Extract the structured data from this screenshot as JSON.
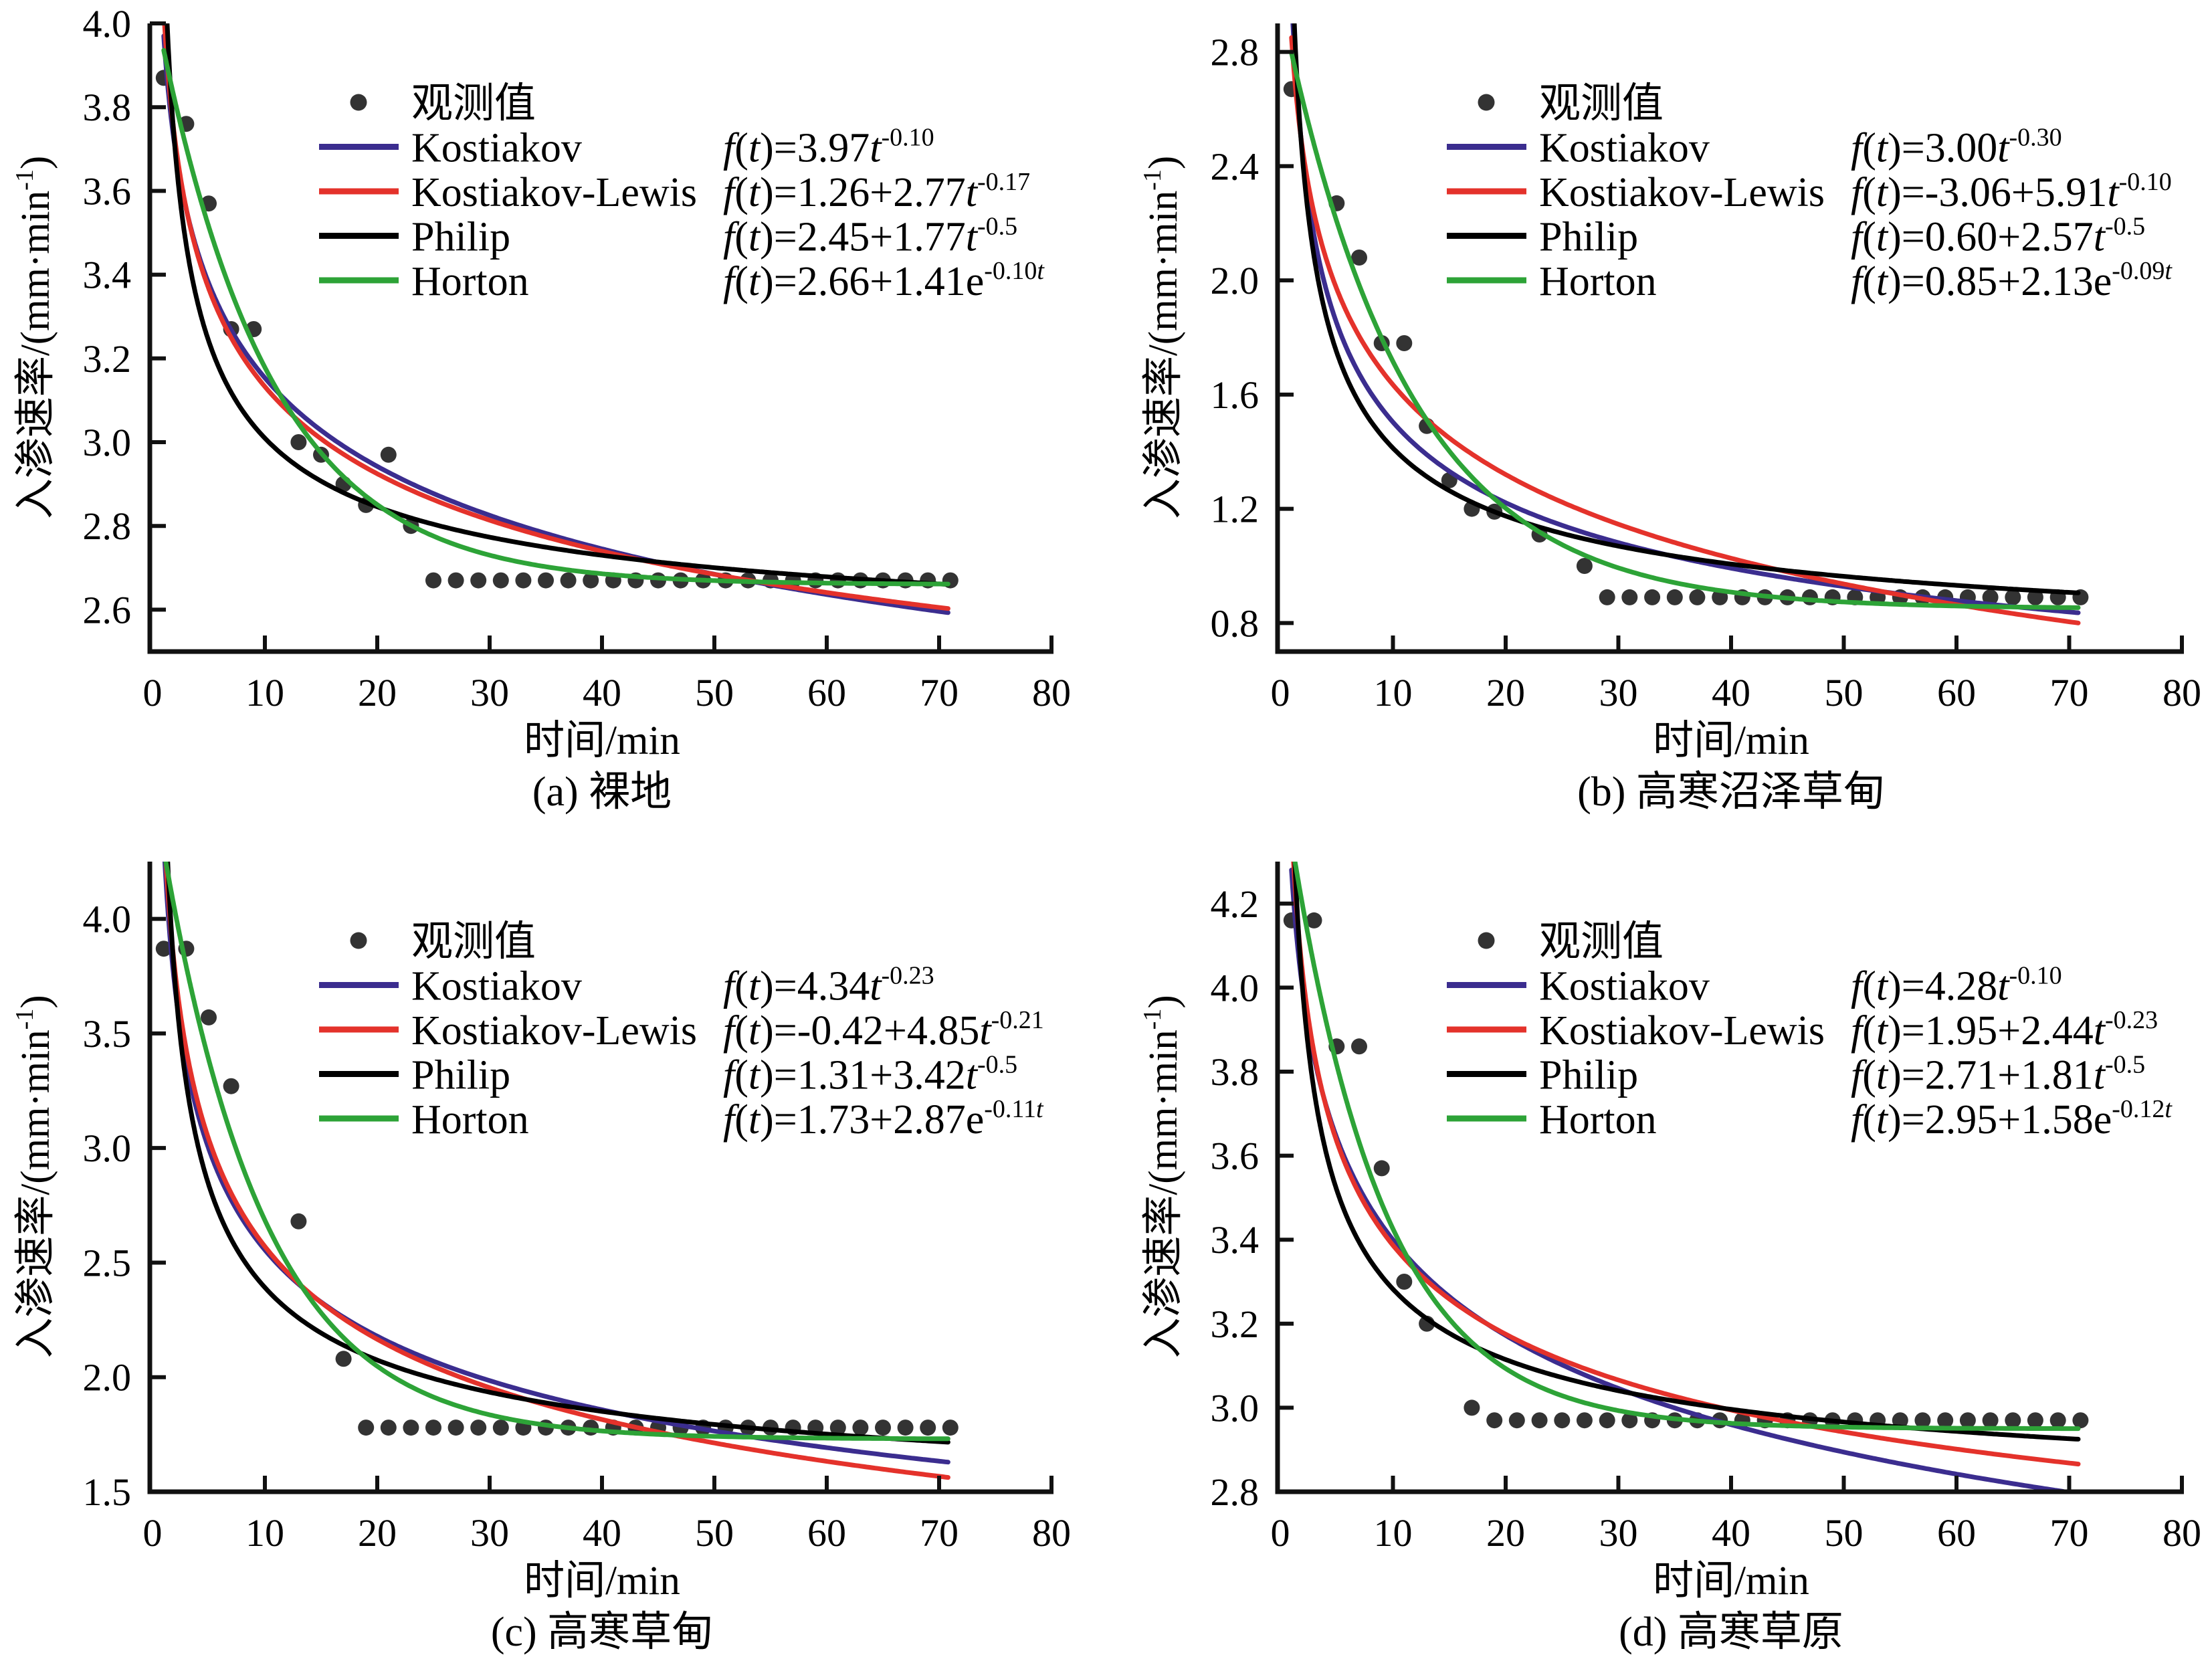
{
  "formula_lhs": {
    "func": "f",
    "open": "(",
    "arg": "t",
    "close": ")"
  },
  "chart_data": [
    {
      "panel": "a",
      "type": "scatter",
      "caption": "(a) 裸地",
      "xlabel": "时间/min",
      "ylabel": {
        "main": "入渗速率/(mm·min",
        "sup": "-1",
        "close": ")"
      },
      "xlim": [
        0,
        80
      ],
      "ylim": [
        2.5,
        4.0
      ],
      "xticks": [
        0,
        10,
        20,
        30,
        40,
        50,
        60,
        70,
        80
      ],
      "xtick_labels": [
        "0",
        "10",
        "20",
        "30",
        "40",
        "50",
        "60",
        "70",
        "80"
      ],
      "yticks": [
        2.6,
        2.8,
        3.0,
        3.2,
        3.4,
        3.6,
        3.8,
        4.0
      ],
      "ytick_labels": [
        "2.6",
        "2.8",
        "3.0",
        "3.2",
        "3.4",
        "3.6",
        "3.8",
        "4.0"
      ],
      "grid": false,
      "legend_position": "top-right",
      "observed": {
        "name": "观测值",
        "color": "#333333",
        "x": [
          1,
          3,
          5,
          7,
          9,
          13,
          15,
          17,
          19,
          21,
          23,
          25,
          27,
          29,
          31,
          33,
          35,
          37,
          39,
          41,
          43,
          45,
          47,
          49,
          51,
          53,
          55,
          57,
          59,
          61,
          63,
          65,
          67,
          69,
          71
        ],
        "y": [
          3.87,
          3.76,
          3.57,
          3.27,
          3.27,
          3.0,
          2.97,
          2.9,
          2.85,
          2.97,
          2.8,
          2.67,
          2.67,
          2.67,
          2.67,
          2.67,
          2.67,
          2.67,
          2.67,
          2.67,
          2.67,
          2.67,
          2.67,
          2.67,
          2.67,
          2.67,
          2.67,
          2.67,
          2.67,
          2.67,
          2.67,
          2.67,
          2.67,
          2.67,
          2.67
        ]
      },
      "series": [
        {
          "name": "Kostiakov",
          "model": "power",
          "color": "#3b2d8f",
          "t_range": [
            1,
            71
          ],
          "params": {
            "a": 3.97,
            "b": -0.1
          },
          "formula": {
            "rhs": "=3.97",
            "var": "t",
            "sup": "-0.10",
            "sup_var": ""
          }
        },
        {
          "name": "Kostiakov-Lewis",
          "model": "power",
          "color": "#e4322b",
          "t_range": [
            1,
            71
          ],
          "params": {
            "c": 1.26,
            "a": 2.77,
            "b": -0.17
          },
          "formula": {
            "rhs": "=1.26+2.77",
            "var": "t",
            "sup": "-0.17",
            "sup_var": ""
          }
        },
        {
          "name": "Philip",
          "model": "power",
          "color": "#000000",
          "t_range": [
            1,
            71
          ],
          "params": {
            "c": 2.45,
            "a": 1.77,
            "b": -0.5
          },
          "formula": {
            "rhs": "=2.45+1.77",
            "var": "t",
            "sup": "-0.5",
            "sup_var": ""
          }
        },
        {
          "name": "Horton",
          "model": "horton",
          "color": "#2da337",
          "t_range": [
            1,
            71
          ],
          "params": {
            "c": 2.66,
            "a": 1.41,
            "k": -0.1
          },
          "formula": {
            "rhs": "=2.66+1.41e",
            "var": "",
            "sup": "-0.10",
            "sup_var": "t"
          }
        }
      ]
    },
    {
      "panel": "b",
      "type": "scatter",
      "caption": "(b) 高寒沼泽草甸",
      "xlabel": "时间/min",
      "ylabel": {
        "main": "入渗速率/(mm·min",
        "sup": "-1",
        "close": ")"
      },
      "xlim": [
        0,
        80
      ],
      "ylim": [
        0.7,
        2.9
      ],
      "xticks": [
        0,
        10,
        20,
        30,
        40,
        50,
        60,
        70,
        80
      ],
      "xtick_labels": [
        "0",
        "10",
        "20",
        "30",
        "40",
        "50",
        "60",
        "70",
        "80"
      ],
      "yticks": [
        0.8,
        1.2,
        1.6,
        2.0,
        2.4,
        2.8
      ],
      "ytick_labels": [
        "0.8",
        "1.2",
        "1.6",
        "2.0",
        "2.4",
        "2.8"
      ],
      "grid": false,
      "legend_position": "top-right",
      "observed": {
        "name": "观测值",
        "color": "#333333",
        "x": [
          1,
          5,
          7,
          9,
          11,
          13,
          15,
          17,
          19,
          23,
          27,
          29,
          31,
          33,
          35,
          37,
          39,
          41,
          43,
          45,
          47,
          49,
          51,
          53,
          55,
          57,
          59,
          61,
          63,
          65,
          67,
          69,
          71
        ],
        "y": [
          2.67,
          2.27,
          2.08,
          1.78,
          1.78,
          1.49,
          1.3,
          1.2,
          1.19,
          1.11,
          1.0,
          0.89,
          0.89,
          0.89,
          0.89,
          0.89,
          0.89,
          0.89,
          0.89,
          0.89,
          0.89,
          0.89,
          0.89,
          0.89,
          0.89,
          0.89,
          0.89,
          0.89,
          0.89,
          0.89,
          0.89,
          0.89,
          0.89
        ]
      },
      "series": [
        {
          "name": "Kostiakov",
          "model": "power",
          "color": "#3b2d8f",
          "t_range": [
            1,
            71
          ],
          "params": {
            "a": 3.0,
            "b": -0.3
          },
          "formula": {
            "rhs": "=3.00",
            "var": "t",
            "sup": "-0.30",
            "sup_var": ""
          }
        },
        {
          "name": "Kostiakov-Lewis",
          "model": "power",
          "color": "#e4322b",
          "t_range": [
            1,
            71
          ],
          "params": {
            "c": -3.06,
            "a": 5.91,
            "b": -0.1
          },
          "formula": {
            "rhs": "=-3.06+5.91",
            "var": "t",
            "sup": "-0.10",
            "sup_var": ""
          }
        },
        {
          "name": "Philip",
          "model": "power",
          "color": "#000000",
          "t_range": [
            1,
            71
          ],
          "params": {
            "c": 0.6,
            "a": 2.57,
            "b": -0.5
          },
          "formula": {
            "rhs": "=0.60+2.57",
            "var": "t",
            "sup": "-0.5",
            "sup_var": ""
          }
        },
        {
          "name": "Horton",
          "model": "horton",
          "color": "#2da337",
          "t_range": [
            1,
            71
          ],
          "params": {
            "c": 0.85,
            "a": 2.13,
            "k": -0.09
          },
          "formula": {
            "rhs": "=0.85+2.13e",
            "var": "",
            "sup": "-0.09",
            "sup_var": "t"
          }
        }
      ]
    },
    {
      "panel": "c",
      "type": "scatter",
      "caption": "(c) 高寒草甸",
      "xlabel": "时间/min",
      "ylabel": {
        "main": "入渗速率/(mm·min",
        "sup": "-1",
        "close": ")"
      },
      "xlim": [
        0,
        80
      ],
      "ylim": [
        1.5,
        4.25
      ],
      "xticks": [
        0,
        10,
        20,
        30,
        40,
        50,
        60,
        70,
        80
      ],
      "xtick_labels": [
        "0",
        "10",
        "20",
        "30",
        "40",
        "50",
        "60",
        "70",
        "80"
      ],
      "yticks": [
        1.5,
        2.0,
        2.5,
        3.0,
        3.5,
        4.0
      ],
      "ytick_labels": [
        "1.5",
        "2.0",
        "2.5",
        "3.0",
        "3.5",
        "4.0"
      ],
      "grid": false,
      "legend_position": "top-right",
      "observed": {
        "name": "观测值",
        "color": "#333333",
        "x": [
          1,
          3,
          5,
          7,
          13,
          17,
          19,
          21,
          23,
          25,
          27,
          29,
          31,
          33,
          35,
          37,
          39,
          41,
          43,
          45,
          47,
          49,
          51,
          53,
          55,
          57,
          59,
          61,
          63,
          65,
          67,
          69,
          71
        ],
        "y": [
          3.87,
          3.87,
          3.57,
          3.27,
          2.68,
          2.08,
          1.78,
          1.78,
          1.78,
          1.78,
          1.78,
          1.78,
          1.78,
          1.78,
          1.78,
          1.78,
          1.78,
          1.78,
          1.78,
          1.78,
          1.78,
          1.78,
          1.78,
          1.78,
          1.78,
          1.78,
          1.78,
          1.78,
          1.78,
          1.78,
          1.78,
          1.78,
          1.78
        ]
      },
      "series": [
        {
          "name": "Kostiakov",
          "model": "power",
          "color": "#3b2d8f",
          "t_range": [
            1,
            71
          ],
          "params": {
            "a": 4.34,
            "b": -0.23
          },
          "formula": {
            "rhs": "=4.34",
            "var": "t",
            "sup": "-0.23",
            "sup_var": ""
          }
        },
        {
          "name": "Kostiakov-Lewis",
          "model": "power",
          "color": "#e4322b",
          "t_range": [
            1,
            71
          ],
          "params": {
            "c": -0.42,
            "a": 4.85,
            "b": -0.21
          },
          "formula": {
            "rhs": "=-0.42+4.85",
            "var": "t",
            "sup": "-0.21",
            "sup_var": ""
          }
        },
        {
          "name": "Philip",
          "model": "power",
          "color": "#000000",
          "t_range": [
            1,
            71
          ],
          "params": {
            "c": 1.31,
            "a": 3.42,
            "b": -0.5
          },
          "formula": {
            "rhs": "=1.31+3.42",
            "var": "t",
            "sup": "-0.5",
            "sup_var": ""
          }
        },
        {
          "name": "Horton",
          "model": "horton",
          "color": "#2da337",
          "t_range": [
            1,
            71
          ],
          "params": {
            "c": 1.73,
            "a": 2.87,
            "k": -0.11
          },
          "formula": {
            "rhs": "=1.73+2.87e",
            "var": "",
            "sup": "-0.11",
            "sup_var": "t"
          }
        }
      ]
    },
    {
      "panel": "d",
      "type": "scatter",
      "caption": "(d) 高寒草原",
      "xlabel": "时间/min",
      "ylabel": {
        "main": "入渗速率/(mm·min",
        "sup": "-1",
        "close": ")"
      },
      "xlim": [
        0,
        80
      ],
      "ylim": [
        2.8,
        4.3
      ],
      "xticks": [
        0,
        10,
        20,
        30,
        40,
        50,
        60,
        70,
        80
      ],
      "xtick_labels": [
        "0",
        "10",
        "20",
        "30",
        "40",
        "50",
        "60",
        "70",
        "80"
      ],
      "yticks": [
        2.8,
        3.0,
        3.2,
        3.4,
        3.6,
        3.8,
        4.0,
        4.2
      ],
      "ytick_labels": [
        "2.8",
        "3.0",
        "3.2",
        "3.4",
        "3.6",
        "3.8",
        "4.0",
        "4.2"
      ],
      "grid": false,
      "legend_position": "top-right",
      "observed": {
        "name": "观测值",
        "color": "#333333",
        "x": [
          1,
          3,
          5,
          7,
          9,
          11,
          13,
          17,
          19,
          21,
          23,
          25,
          27,
          29,
          31,
          33,
          35,
          37,
          39,
          41,
          43,
          45,
          47,
          49,
          51,
          53,
          55,
          57,
          59,
          61,
          63,
          65,
          67,
          69,
          71
        ],
        "y": [
          4.16,
          4.16,
          3.86,
          3.86,
          3.57,
          3.3,
          3.2,
          3.0,
          2.97,
          2.97,
          2.97,
          2.97,
          2.97,
          2.97,
          2.97,
          2.97,
          2.97,
          2.97,
          2.97,
          2.97,
          2.97,
          2.97,
          2.97,
          2.97,
          2.97,
          2.97,
          2.97,
          2.97,
          2.97,
          2.97,
          2.97,
          2.97,
          2.97,
          2.97,
          2.97
        ]
      },
      "series": [
        {
          "name": "Kostiakov",
          "model": "power",
          "color": "#3b2d8f",
          "t_range": [
            1,
            71
          ],
          "params": {
            "a": 4.28,
            "b": -0.1
          },
          "formula": {
            "rhs": "=4.28",
            "var": "t",
            "sup": "-0.10",
            "sup_var": ""
          }
        },
        {
          "name": "Kostiakov-Lewis",
          "model": "power",
          "color": "#e4322b",
          "t_range": [
            1,
            71
          ],
          "params": {
            "c": 1.95,
            "a": 2.44,
            "b": -0.23
          },
          "formula": {
            "rhs": "=1.95+2.44",
            "var": "t",
            "sup": "-0.23",
            "sup_var": ""
          }
        },
        {
          "name": "Philip",
          "model": "power",
          "color": "#000000",
          "t_range": [
            1,
            71
          ],
          "params": {
            "c": 2.71,
            "a": 1.81,
            "b": -0.5
          },
          "formula": {
            "rhs": "=2.71+1.81",
            "var": "t",
            "sup": "-0.5",
            "sup_var": ""
          }
        },
        {
          "name": "Horton",
          "model": "horton",
          "color": "#2da337",
          "t_range": [
            1,
            71
          ],
          "params": {
            "c": 2.95,
            "a": 1.58,
            "k": -0.12
          },
          "formula": {
            "rhs": "=2.95+1.58e",
            "var": "",
            "sup": "-0.12",
            "sup_var": "t"
          }
        }
      ]
    }
  ]
}
